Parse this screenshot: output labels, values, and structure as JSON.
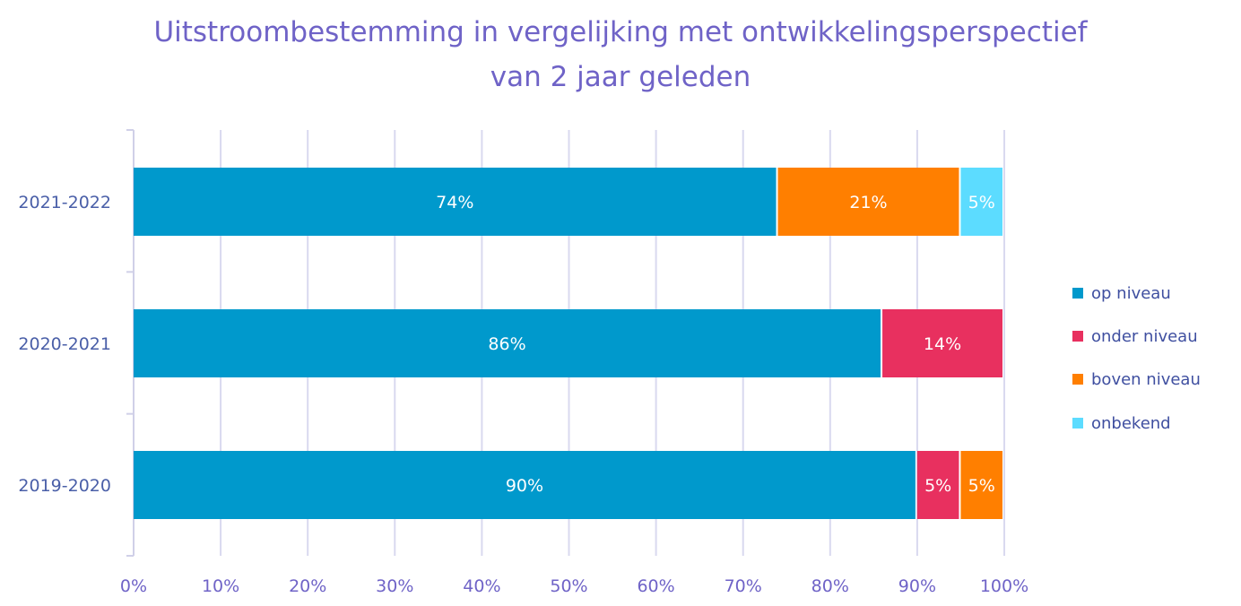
{
  "chart_data": {
    "type": "bar",
    "orientation": "horizontal",
    "stacked": true,
    "title": "Uitstroombestemming in vergelijking met ontwikkelingsperspectief van 2 jaar geleden",
    "title_lines": [
      "Uitstroombestemming in vergelijking met ontwikkelingsperspectief",
      "van 2 jaar geleden"
    ],
    "categories": [
      "2021-2022",
      "2020-2021",
      "2019-2020"
    ],
    "series": [
      {
        "name": "op niveau",
        "color": "#0099cc",
        "values": [
          74,
          86,
          90
        ]
      },
      {
        "name": "onder niveau",
        "color": "#e8305f",
        "values": [
          0,
          14,
          5
        ]
      },
      {
        "name": "boven niveau",
        "color": "#ff7f00",
        "values": [
          21,
          0,
          5
        ]
      },
      {
        "name": "onbekend",
        "color": "#5cdcff",
        "values": [
          5,
          0,
          0
        ]
      }
    ],
    "data_labels": [
      [
        "74%",
        "",
        "21%",
        "5%"
      ],
      [
        "86%",
        "14%",
        "",
        ""
      ],
      [
        "90%",
        "5%",
        "5%",
        ""
      ]
    ],
    "x_ticks": [
      "0%",
      "10%",
      "20%",
      "30%",
      "40%",
      "50%",
      "60%",
      "70%",
      "80%",
      "90%",
      "100%"
    ],
    "xlim": [
      0,
      100
    ],
    "xlabel": "",
    "ylabel": "",
    "grid": true,
    "legend_position": "right",
    "colors": {
      "title": "#6f63c7",
      "axis_text": "#6f63c7",
      "category_text": "#4a5fa8",
      "legend_text": "#3f4fa0",
      "gridline": "#d9d9ef",
      "axis_line": "#d0d0e8"
    }
  }
}
